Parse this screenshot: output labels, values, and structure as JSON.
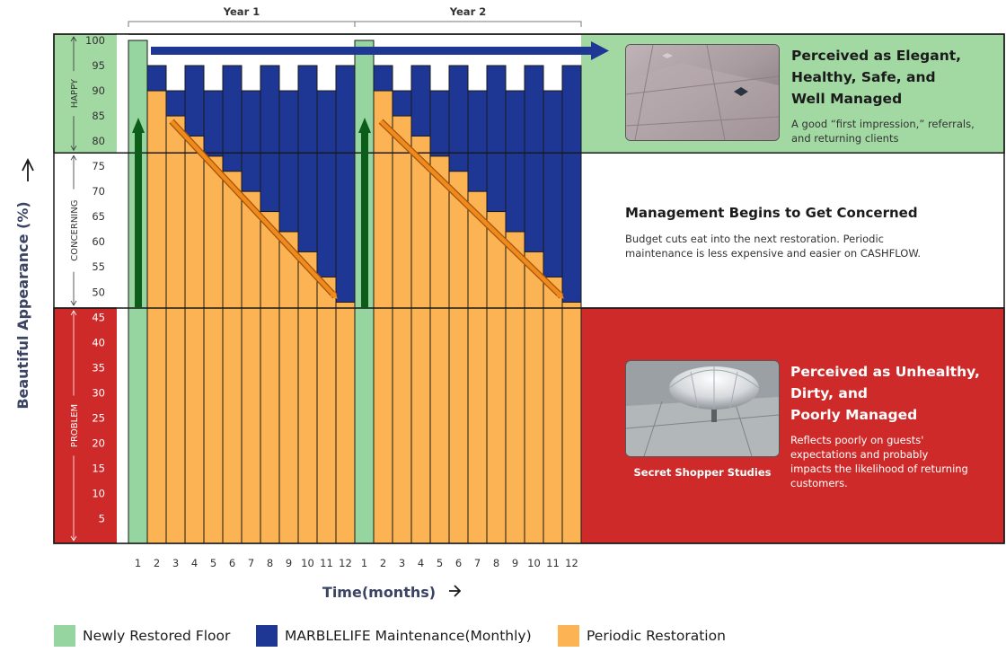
{
  "chart_data": {
    "type": "bar",
    "title": "",
    "xlabel": "Time(months)",
    "ylabel": "Beautiful Appearance (%)",
    "ylim": [
      0,
      100
    ],
    "y_ticks": [
      5,
      10,
      15,
      20,
      25,
      30,
      35,
      40,
      45,
      50,
      55,
      60,
      65,
      70,
      75,
      80,
      85,
      90,
      95,
      100
    ],
    "years": [
      "Year 1",
      "Year 2"
    ],
    "categories": [
      "1",
      "2",
      "3",
      "4",
      "5",
      "6",
      "7",
      "8",
      "9",
      "10",
      "11",
      "12",
      "1",
      "2",
      "3",
      "4",
      "5",
      "6",
      "7",
      "8",
      "9",
      "10",
      "11",
      "12"
    ],
    "series": [
      {
        "name": "Newly Restored Floor",
        "color": "#97d5a0",
        "values": [
          100,
          0,
          0,
          0,
          0,
          0,
          0,
          0,
          0,
          0,
          0,
          0,
          100,
          0,
          0,
          0,
          0,
          0,
          0,
          0,
          0,
          0,
          0,
          0
        ]
      },
      {
        "name": "MARBLELIFE Maintenance(Monthly)",
        "color": "#1f3794",
        "values": [
          0,
          95,
          90,
          95,
          90,
          95,
          90,
          95,
          90,
          95,
          90,
          95,
          0,
          95,
          90,
          95,
          90,
          95,
          90,
          95,
          90,
          95,
          90,
          95
        ]
      },
      {
        "name": "Periodic Restoration",
        "color": "#fbb353",
        "values": [
          0,
          90,
          85,
          81,
          77,
          74,
          70,
          66,
          62,
          58,
          53,
          48,
          0,
          90,
          85,
          81,
          77,
          74,
          70,
          66,
          62,
          58,
          53,
          48
        ]
      }
    ],
    "zones": [
      {
        "label": "HAPPY",
        "range": [
          78,
          100
        ],
        "color": "#a2d9a3"
      },
      {
        "label": "CONCERNING",
        "range": [
          48,
          78
        ],
        "color": "#ffffff"
      },
      {
        "label": "PROBLEM",
        "range": [
          0,
          48
        ],
        "color": "#cf2a2a"
      }
    ],
    "grid": false,
    "legend_position": "bottom"
  },
  "panels": {
    "happy": {
      "title_lines": [
        "Perceived as Elegant,",
        "Healthy, Safe, and",
        "Well Managed"
      ],
      "desc_lines": [
        "A good “first impression,” referrals,",
        "and returning clients"
      ]
    },
    "concerning": {
      "title": "Management Begins to Get Concerned",
      "desc_lines": [
        "Budget cuts eat into the next restoration. Periodic",
        "maintenance is less expensive and easier on CASHFLOW."
      ]
    },
    "problem": {
      "title_lines": [
        "Perceived as Unhealthy,",
        "Dirty, and",
        "Poorly Managed"
      ],
      "desc_lines": [
        "Reflects poorly on guests'",
        "expectations and probably",
        "impacts the likelihood of returning",
        "customers."
      ],
      "photo_caption": "Secret Shopper Studies"
    }
  },
  "legend": [
    {
      "label": "Newly Restored Floor",
      "color": "#97d5a0"
    },
    {
      "label": "MARBLELIFE Maintenance(Monthly)",
      "color": "#1f3794"
    },
    {
      "label": "Periodic Restoration",
      "color": "#fbb353"
    }
  ],
  "colors": {
    "happy_band": "#a2d9a3",
    "problem_band": "#cf2a2a",
    "new_floor": "#97d5a0",
    "maintenance": "#1f3794",
    "restoration": "#fbb353",
    "arrow_up": "#0c5c1a",
    "arrow_down": "#f08a1c",
    "arrow_right": "#1f3794"
  },
  "icons": {
    "axis_arrow": "arrow-right-icon",
    "happy_photo": "marble-floor-photo",
    "problem_photo": "dome-reflection-photo"
  }
}
